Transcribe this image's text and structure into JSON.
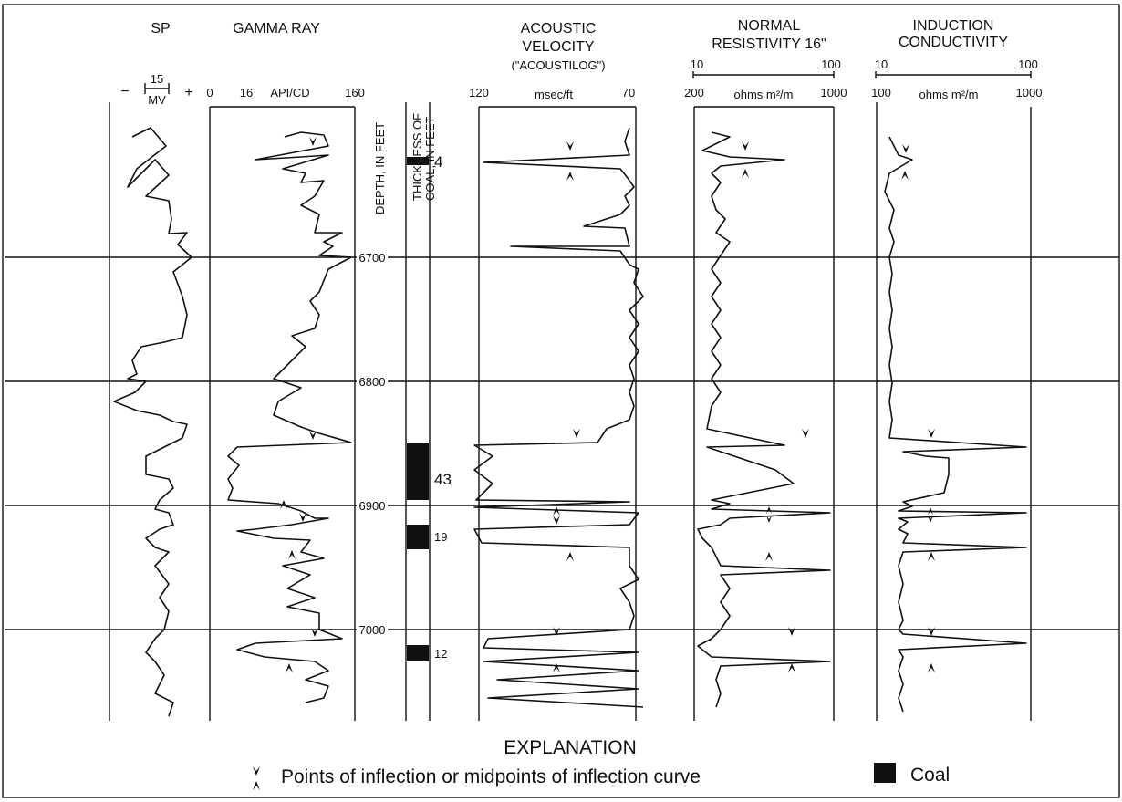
{
  "tracks": {
    "sp": {
      "title": "SP",
      "scale_value": "15",
      "scale_unit": "MV",
      "minus": "−",
      "plus": "+"
    },
    "gamma": {
      "title": "GAMMA RAY",
      "tick_left": "0",
      "tick_mid": "16",
      "unit": "API/CD",
      "tick_right": "160"
    },
    "depth_label": "DEPTH, IN FEET",
    "coal_thickness_label_1": "THICKNESS OF",
    "coal_thickness_label_2": "COAL, IN FEET",
    "acoustic": {
      "title_1": "ACOUSTIC",
      "title_2": "VELOCITY",
      "title_3": "(\"ACOUSTILOG\")",
      "tick_left": "120",
      "unit": "msec/ft",
      "tick_right": "70"
    },
    "normal": {
      "title_1": "NORMAL",
      "title_2": "RESISTIVITY 16\"",
      "top_left": "10",
      "top_right": "100",
      "tick_left": "200",
      "unit": "ohms m²/m",
      "tick_right": "1000"
    },
    "induction": {
      "title_1": "INDUCTION",
      "title_2": "CONDUCTIVITY",
      "top_left": "10",
      "top_right": "100",
      "tick_left": "100",
      "unit": "ohms  m²/m",
      "tick_right": "1000"
    }
  },
  "depth_marks": [
    "6700",
    "6800",
    "6900",
    "7000"
  ],
  "coal_beds": [
    {
      "thickness": "4"
    },
    {
      "thickness": "43"
    },
    {
      "thickness": "19"
    },
    {
      "thickness": "12"
    }
  ],
  "explanation": {
    "title": "EXPLANATION",
    "inflection_text": "Points of inflection or midpoints of inflection curve",
    "coal_text": "Coal"
  }
}
